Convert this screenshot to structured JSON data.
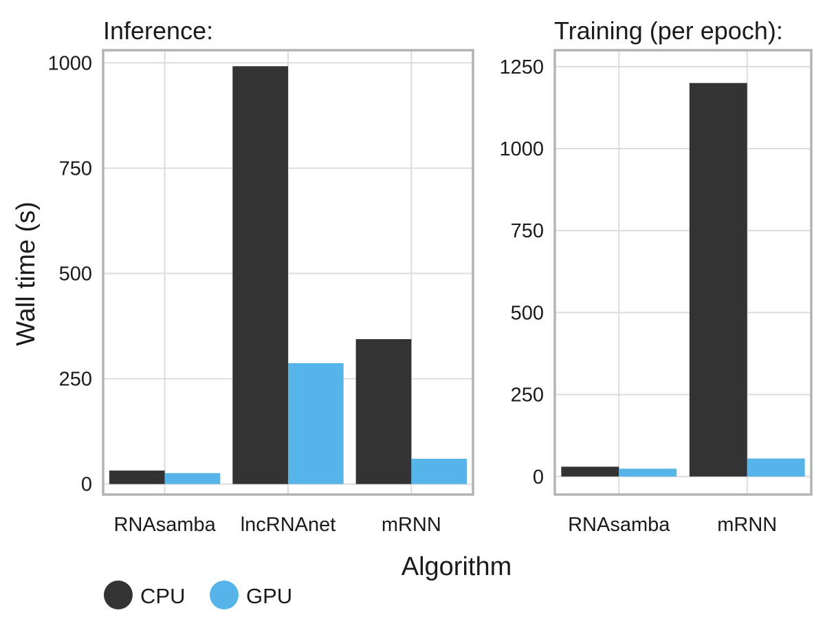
{
  "chart_data": [
    {
      "type": "bar",
      "title": "Inference:",
      "categories": [
        "RNAsamba",
        "lncRNAnet",
        "mRNN"
      ],
      "series": [
        {
          "name": "CPU",
          "values": [
            32,
            992,
            344
          ]
        },
        {
          "name": "GPU",
          "values": [
            26,
            287,
            60
          ]
        }
      ],
      "ylim": [
        -25,
        1030
      ],
      "yticks": [
        0,
        250,
        500,
        750,
        1000
      ],
      "ylabel": "Wall time (s)",
      "xlabel": "",
      "grid": true
    },
    {
      "type": "bar",
      "title": "Training (per epoch):",
      "categories": [
        "RNAsamba",
        "mRNN"
      ],
      "series": [
        {
          "name": "CPU",
          "values": [
            30,
            1200
          ]
        },
        {
          "name": "GPU",
          "values": [
            24,
            55
          ]
        }
      ],
      "ylim": [
        -55,
        1300
      ],
      "yticks": [
        0,
        250,
        500,
        750,
        1000,
        1250
      ],
      "ylabel": "",
      "xlabel": "",
      "grid": true
    }
  ],
  "shared": {
    "ylabel": "Wall time (s)",
    "xlabel": "Algorithm",
    "legend_position": "bottom-left"
  },
  "legend": [
    {
      "name": "CPU",
      "color": "#333333"
    },
    {
      "name": "GPU",
      "color": "#56b4e9"
    }
  ],
  "colors": {
    "cpu": "#333333",
    "gpu": "#56b4e9",
    "grid": "#dcdcdc",
    "frame": "#b3b3b3"
  }
}
